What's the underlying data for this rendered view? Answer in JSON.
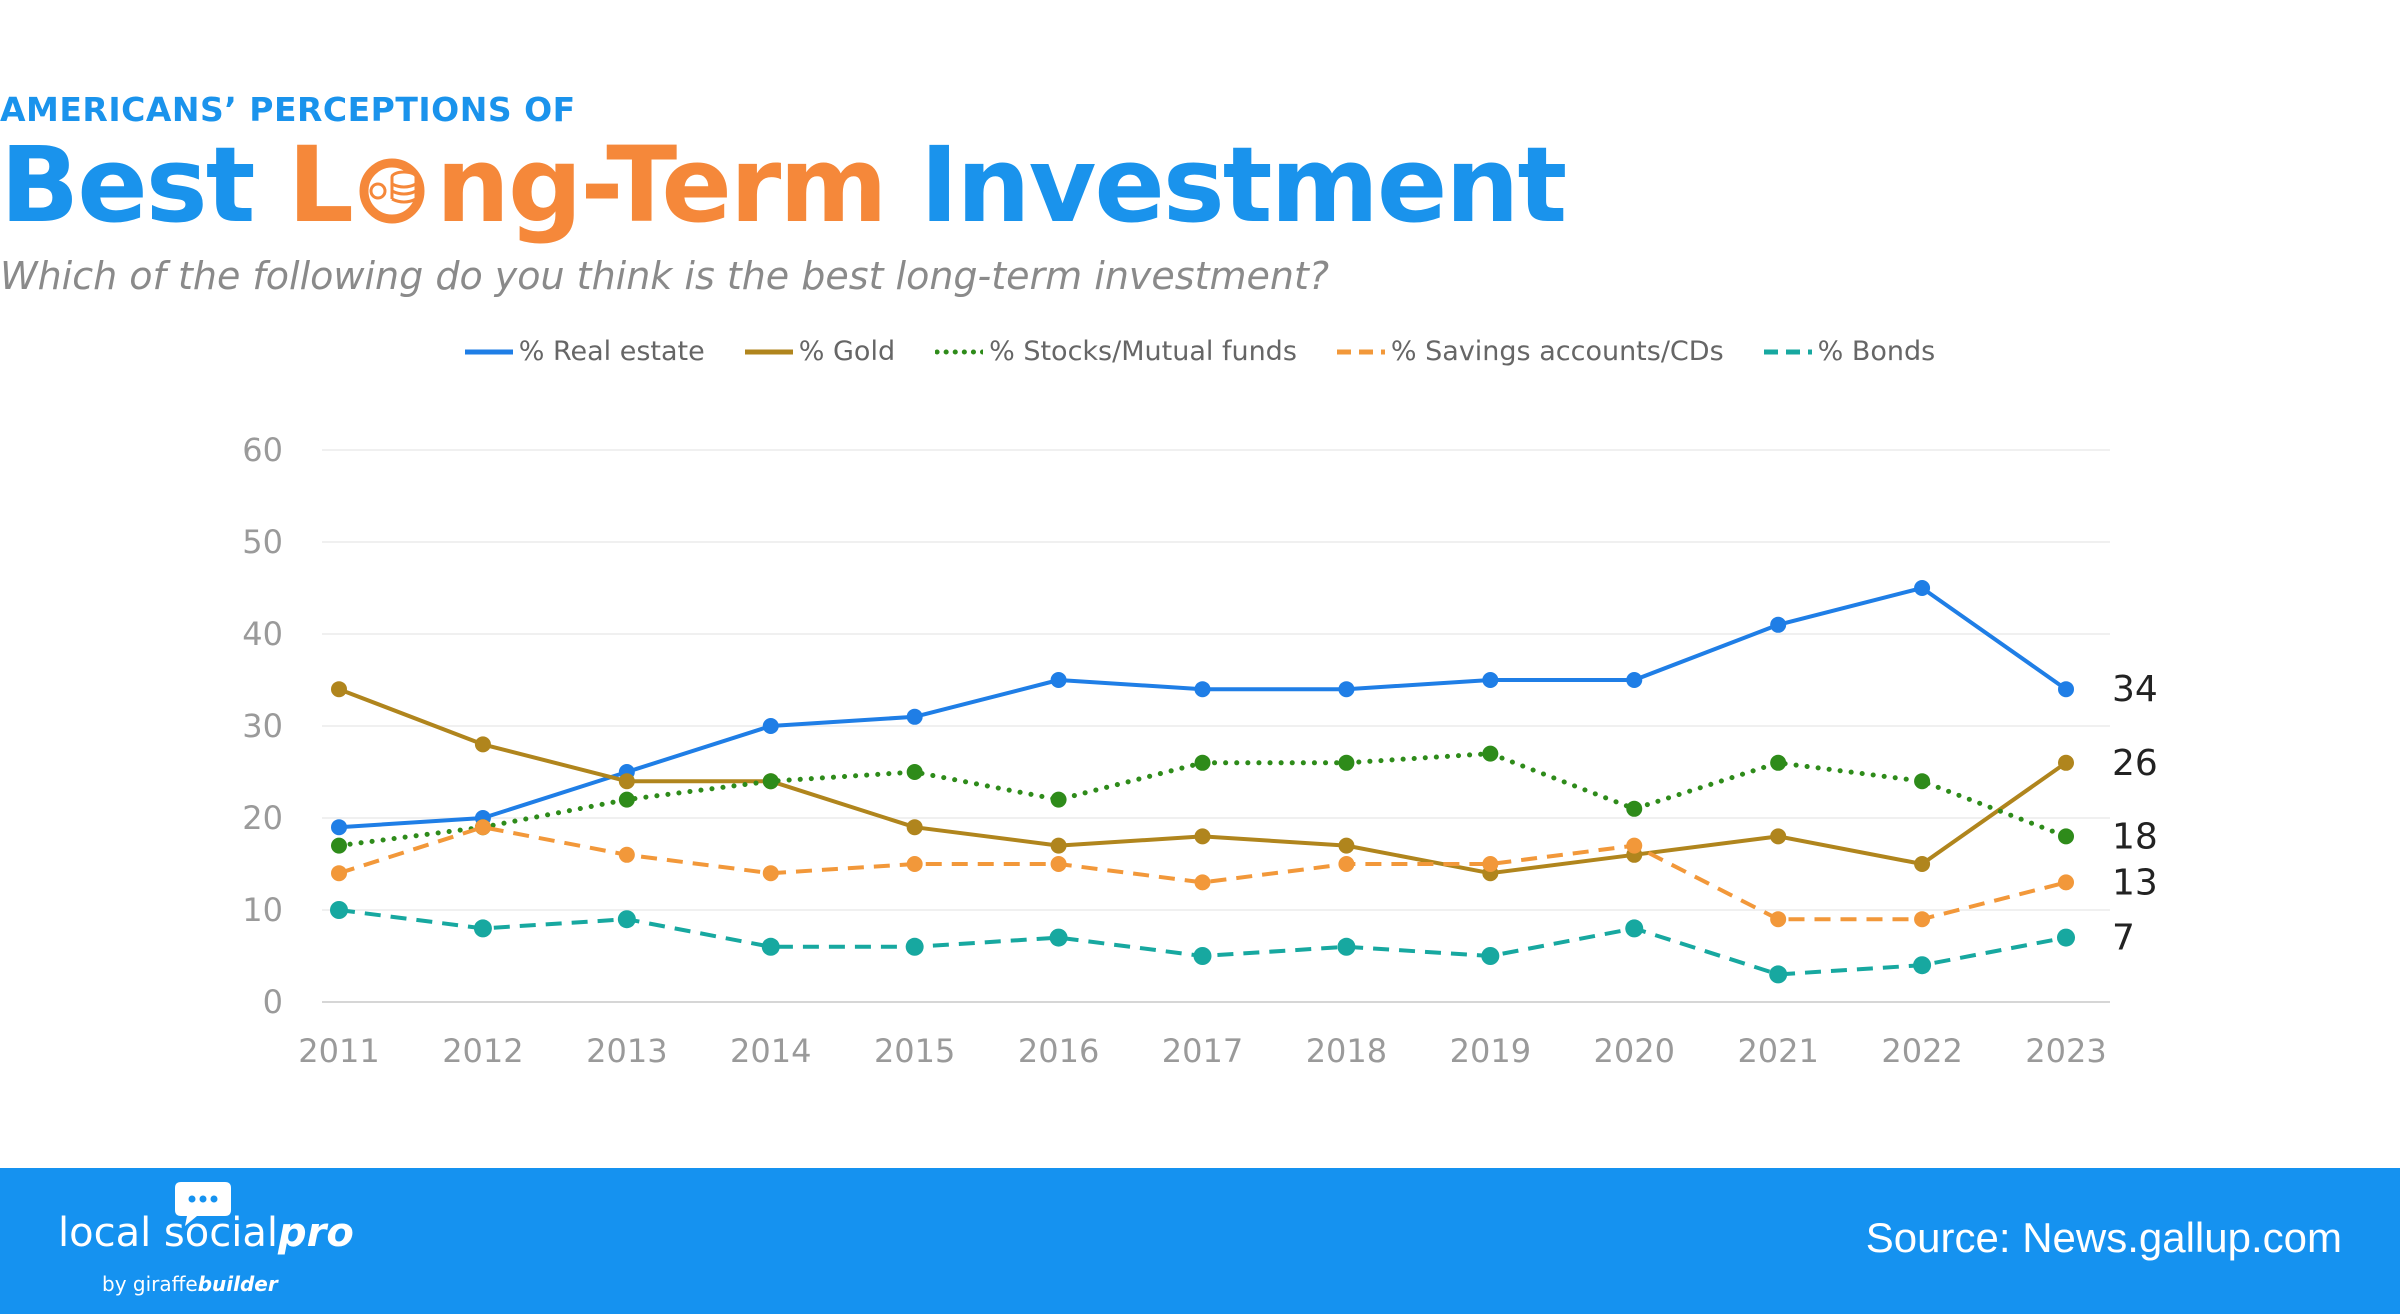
{
  "header": {
    "kicker": "AMERICANS’ PERCEPTIONS OF",
    "title_part1": "Best",
    "title_part2_pre": "L",
    "title_part2_post": "ng-Term",
    "title_part3": "Investment",
    "subtitle": "Which of the following do you think is the best long-term investment?"
  },
  "colors": {
    "title_blue": "#1a93ec",
    "title_orange": "#f5883a",
    "footer_blue": "#1592f0"
  },
  "chart_data": {
    "type": "line",
    "x": [
      "2011",
      "2012",
      "2013",
      "2014",
      "2015",
      "2016",
      "2017",
      "2018",
      "2019",
      "2020",
      "2021",
      "2022",
      "2023"
    ],
    "ylim": [
      0,
      60
    ],
    "yticks": [
      "0",
      "10",
      "20",
      "30",
      "40",
      "50",
      "60"
    ],
    "grid": true,
    "legend_position": "top-center",
    "series": [
      {
        "name": "% Real estate",
        "color": "#1f7ee6",
        "style": "solid",
        "values": [
          19,
          20,
          25,
          30,
          31,
          35,
          34,
          34,
          35,
          35,
          41,
          45,
          34
        ],
        "end_label": "34"
      },
      {
        "name": "% Gold",
        "color": "#b0851d",
        "style": "solid",
        "values": [
          34,
          28,
          24,
          24,
          19,
          17,
          18,
          17,
          14,
          16,
          18,
          15,
          26
        ],
        "end_label": "26"
      },
      {
        "name": "% Stocks/Mutual funds",
        "color": "#2e8b1a",
        "style": "dotted",
        "values": [
          17,
          19,
          22,
          24,
          25,
          22,
          26,
          26,
          27,
          21,
          26,
          24,
          18
        ],
        "end_label": "18"
      },
      {
        "name": "% Savings accounts/CDs",
        "color": "#f2983a",
        "style": "dashed",
        "values": [
          14,
          19,
          16,
          14,
          15,
          15,
          13,
          15,
          15,
          17,
          9,
          9,
          13
        ],
        "end_label": "13"
      },
      {
        "name": "% Bonds",
        "color": "#17a8a0",
        "style": "dashed",
        "values": [
          10,
          8,
          9,
          6,
          6,
          7,
          5,
          6,
          5,
          8,
          3,
          4,
          7
        ],
        "end_label": "7"
      }
    ]
  },
  "footer": {
    "brand_main": "local social",
    "brand_pro": "pro",
    "brand_by": "by giraffe",
    "brand_by_bold": "builder",
    "source": "Source: News.gallup.com"
  }
}
